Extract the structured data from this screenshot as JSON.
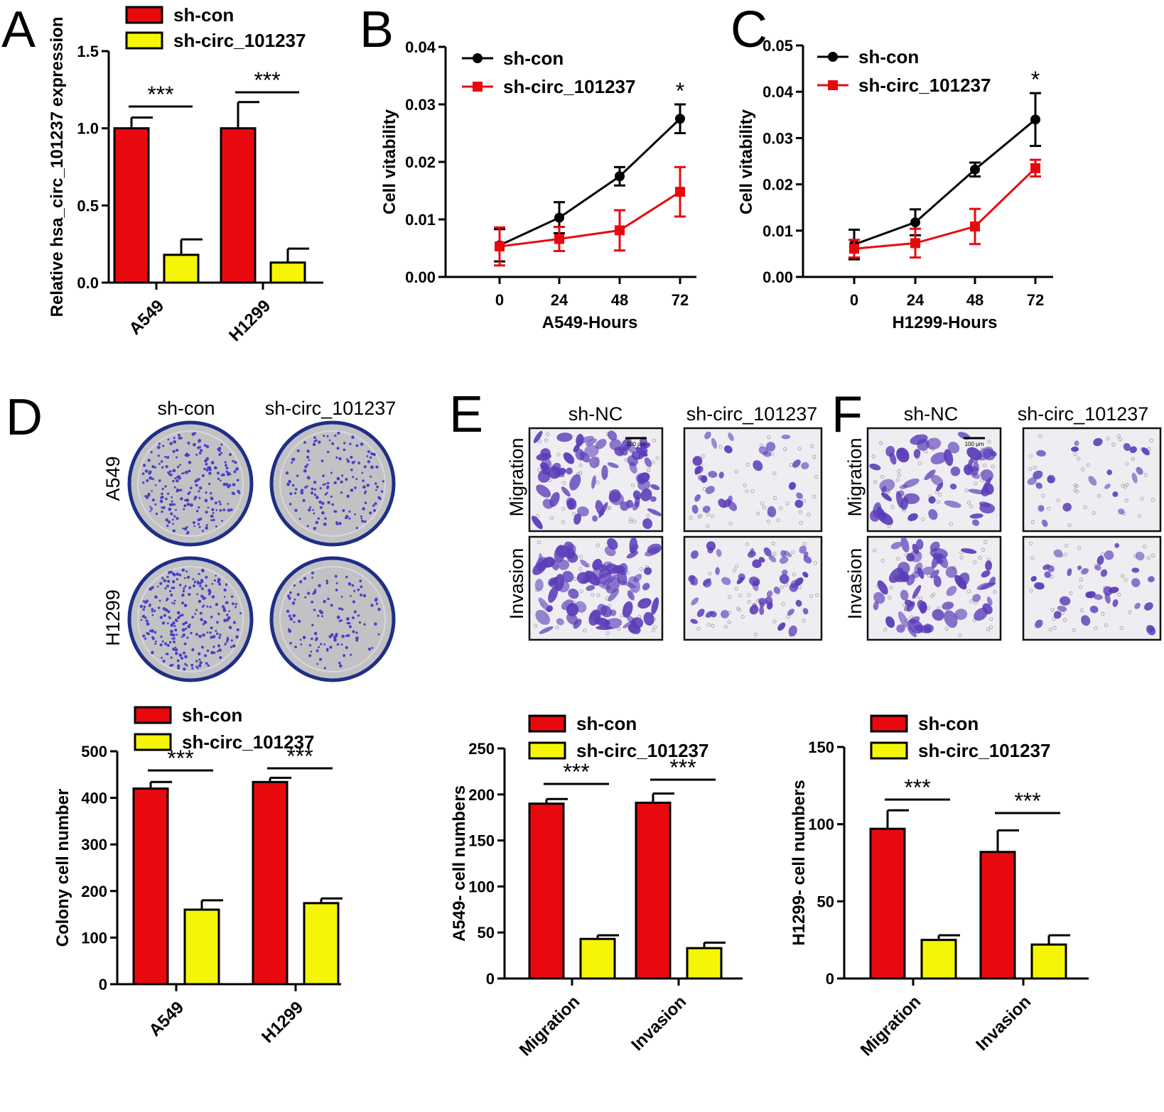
{
  "panels": {
    "A": "A",
    "B": "B",
    "C": "C",
    "D": "D",
    "E": "E",
    "F": "F"
  },
  "colors": {
    "sh_con_bar": "#e8090f",
    "sh_circ_bar": "#f5f507",
    "sh_con_line": "#000000",
    "sh_circ_line": "#e8090f",
    "dish_rim": "#1f2f86",
    "dish_fill": "#c2c2c5",
    "colony": "#4a3fc8",
    "stain": "#5a3bb8"
  },
  "panelD_images": {
    "col_labels": [
      "sh-con",
      "sh-circ_101237"
    ],
    "row_labels": [
      "A549",
      "H1299"
    ]
  },
  "panelE_images": {
    "col_labels": [
      "sh-NC",
      "sh-circ_101237"
    ],
    "row_labels": [
      "Migration",
      "Invasion"
    ],
    "scale_bar": "100 μm"
  },
  "panelF_images": {
    "col_labels": [
      "sh-NC",
      "sh-circ_101237"
    ],
    "row_labels": [
      "Migration",
      "Invasion"
    ],
    "scale_bar": "100 μm"
  },
  "chart_data": [
    {
      "id": "A",
      "type": "bar",
      "ylabel": "Relative hsa_circ_101237 expression",
      "categories": [
        "A549",
        "H1299"
      ],
      "series": [
        {
          "name": "sh-con",
          "values": [
            1.0,
            1.0
          ],
          "errors": [
            0.07,
            0.17
          ]
        },
        {
          "name": "sh-circ_101237",
          "values": [
            0.18,
            0.13
          ],
          "errors": [
            0.1,
            0.09
          ]
        }
      ],
      "ylim": [
        0,
        1.5
      ],
      "yticks": [
        0.0,
        0.5,
        1.0,
        1.5
      ],
      "tick_labels": [
        "0.0",
        "0.5",
        "1.0",
        "1.5"
      ],
      "significance": [
        "***",
        "***"
      ]
    },
    {
      "id": "B",
      "type": "line",
      "xlabel": "A549-Hours",
      "ylabel": "Cell vitability",
      "x": [
        0,
        24,
        48,
        72
      ],
      "series": [
        {
          "name": "sh-con",
          "values": [
            0.0055,
            0.0103,
            0.0175,
            0.0275
          ],
          "errors": [
            0.0028,
            0.0027,
            0.0016,
            0.0025
          ]
        },
        {
          "name": "sh-circ_101237",
          "values": [
            0.0053,
            0.0066,
            0.0081,
            0.0148
          ],
          "errors": [
            0.0033,
            0.0021,
            0.0035,
            0.0043
          ]
        }
      ],
      "ylim": [
        0,
        0.04
      ],
      "yticks": [
        0.0,
        0.01,
        0.02,
        0.03,
        0.04
      ],
      "tick_labels": [
        "0.00",
        "0.01",
        "0.02",
        "0.03",
        "0.04"
      ],
      "annotations": [
        {
          "x": 72,
          "text": "*"
        }
      ]
    },
    {
      "id": "C",
      "type": "line",
      "xlabel": "H1299-Hours",
      "ylabel": "Cell vitability",
      "x": [
        0,
        24,
        48,
        72
      ],
      "series": [
        {
          "name": "sh-con",
          "values": [
            0.007,
            0.0118,
            0.0232,
            0.034
          ],
          "errors": [
            0.0032,
            0.0028,
            0.0015,
            0.0057
          ]
        },
        {
          "name": "sh-circ_101237",
          "values": [
            0.0061,
            0.0073,
            0.0109,
            0.0235
          ],
          "errors": [
            0.0019,
            0.0031,
            0.0038,
            0.0018
          ]
        }
      ],
      "ylim": [
        0,
        0.05
      ],
      "yticks": [
        0.0,
        0.01,
        0.02,
        0.03,
        0.04,
        0.05
      ],
      "tick_labels": [
        "0.00",
        "0.01",
        "0.02",
        "0.03",
        "0.04",
        "0.05"
      ],
      "annotations": [
        {
          "x": 72,
          "text": "*"
        }
      ]
    },
    {
      "id": "D",
      "type": "bar",
      "ylabel": "Colony cell number",
      "categories": [
        "A549",
        "H1299"
      ],
      "series": [
        {
          "name": "sh-con",
          "values": [
            420,
            434
          ],
          "errors": [
            14,
            9
          ]
        },
        {
          "name": "sh-circ_101237",
          "values": [
            160,
            174
          ],
          "errors": [
            20,
            10
          ]
        }
      ],
      "ylim": [
        0,
        500
      ],
      "yticks": [
        0,
        100,
        200,
        300,
        400,
        500
      ],
      "tick_labels": [
        "0",
        "100",
        "200",
        "300",
        "400",
        "500"
      ],
      "significance": [
        "***",
        "***"
      ]
    },
    {
      "id": "E",
      "type": "bar",
      "ylabel": "A549- cell numbers",
      "categories": [
        "Migration",
        "Invasion"
      ],
      "series": [
        {
          "name": "sh-con",
          "values": [
            190,
            191
          ],
          "errors": [
            5,
            10
          ]
        },
        {
          "name": "sh-circ_101237",
          "values": [
            43,
            33
          ],
          "errors": [
            4,
            6
          ]
        }
      ],
      "ylim": [
        0,
        250
      ],
      "yticks": [
        0,
        50,
        100,
        150,
        200,
        250
      ],
      "tick_labels": [
        "0",
        "50",
        "100",
        "150",
        "200",
        "250"
      ],
      "significance": [
        "***",
        "***"
      ]
    },
    {
      "id": "F",
      "type": "bar",
      "ylabel": "H1299- cell numbers",
      "categories": [
        "Migration",
        "Invasion"
      ],
      "series": [
        {
          "name": "sh-con",
          "values": [
            97,
            82
          ],
          "errors": [
            12,
            14
          ]
        },
        {
          "name": "sh-circ_101237",
          "values": [
            25,
            22
          ],
          "errors": [
            3,
            6
          ]
        }
      ],
      "ylim": [
        0,
        150
      ],
      "yticks": [
        0,
        50,
        100,
        150
      ],
      "tick_labels": [
        "0",
        "50",
        "100",
        "150"
      ],
      "significance": [
        "***",
        "***"
      ]
    }
  ]
}
